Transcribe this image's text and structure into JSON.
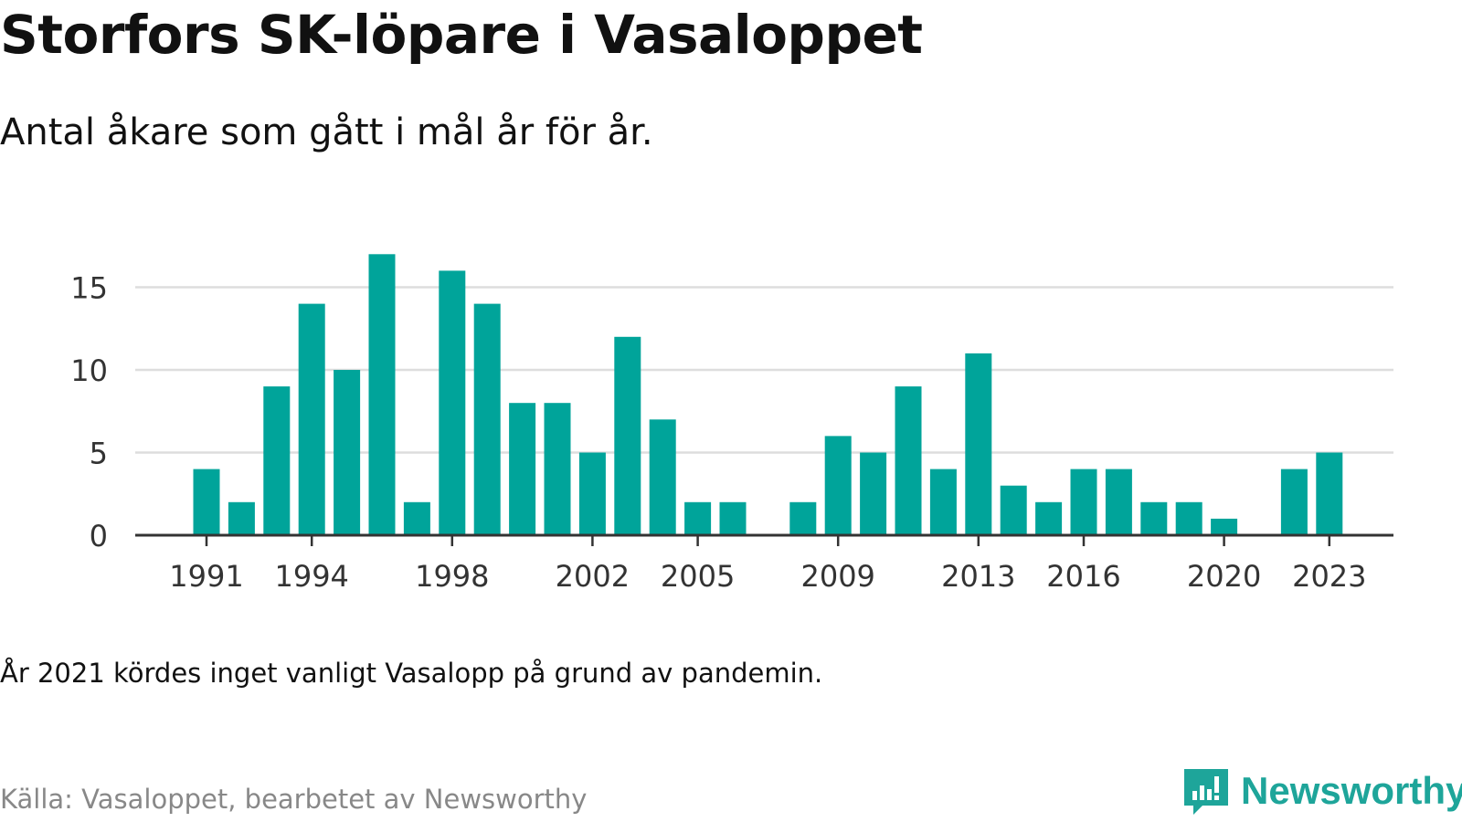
{
  "header": {
    "title": "Storfors SK-löpare i Vasaloppet",
    "subtitle": "Antal åkare som gått i mål år för år."
  },
  "footer": {
    "note": "År 2021 kördes inget vanligt Vasalopp på grund av pandemin.",
    "source": "Källa: Vasaloppet, bearbetet av Newsworthy",
    "brand": "Newsworthy"
  },
  "colors": {
    "bar": "#00a49a",
    "grid": "#dddddd",
    "axis": "#333333",
    "tick_text": "#333333",
    "brand": "#1ea59a"
  },
  "chart_data": {
    "type": "bar",
    "title": "Storfors SK-löpare i Vasaloppet",
    "subtitle": "Antal åkare som gått i mål år för år.",
    "categories": [
      1991,
      1992,
      1993,
      1994,
      1995,
      1996,
      1997,
      1998,
      1999,
      2000,
      2001,
      2002,
      2003,
      2004,
      2005,
      2006,
      2007,
      2008,
      2009,
      2010,
      2011,
      2012,
      2013,
      2014,
      2015,
      2016,
      2017,
      2018,
      2019,
      2020,
      2021,
      2022,
      2023
    ],
    "values": [
      4,
      2,
      9,
      14,
      10,
      17,
      2,
      16,
      14,
      8,
      8,
      5,
      12,
      7,
      2,
      2,
      null,
      2,
      6,
      5,
      9,
      4,
      11,
      3,
      2,
      4,
      4,
      2,
      2,
      1,
      null,
      4,
      5
    ],
    "xticks": [
      1991,
      1994,
      1998,
      2002,
      2005,
      2009,
      2013,
      2016,
      2020,
      2023
    ],
    "yticks": [
      0,
      5,
      10,
      15
    ],
    "ylim": [
      0,
      18
    ],
    "grid": true
  }
}
